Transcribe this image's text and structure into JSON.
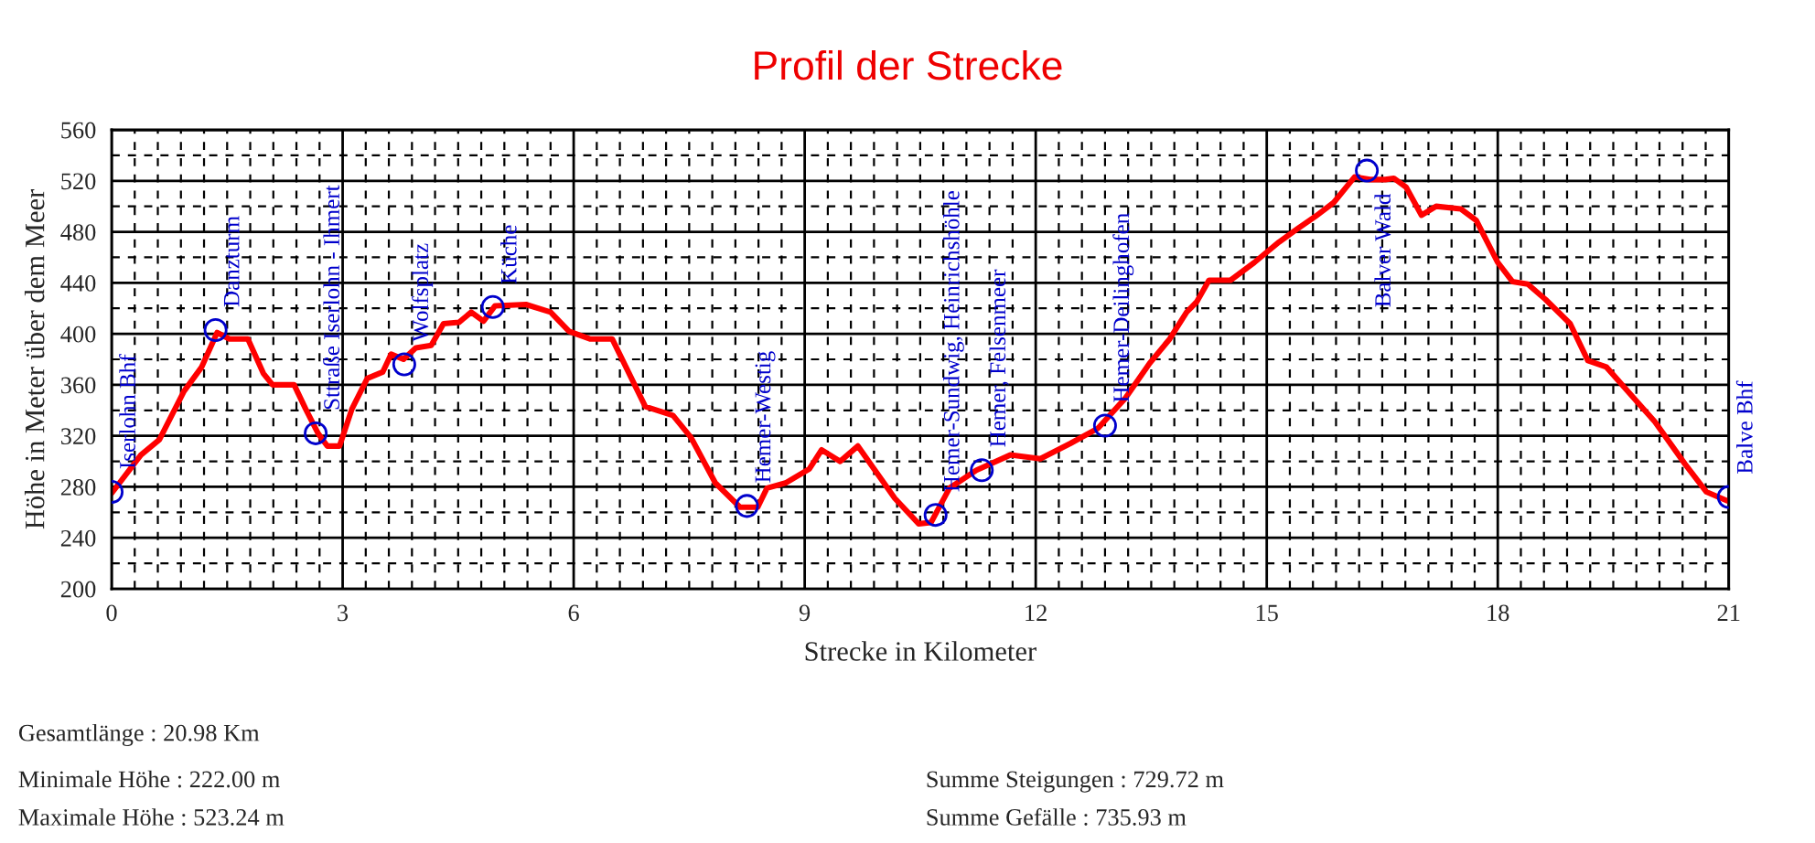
{
  "chart_data": {
    "type": "line",
    "title": "Profil der Strecke",
    "xlabel": "Strecke in Kilometer",
    "ylabel": "Höhe in Meter über dem Meer",
    "xlim": [
      0,
      21
    ],
    "xticks": [
      0,
      3,
      6,
      9,
      12,
      15,
      18,
      21
    ],
    "ylim": [
      200,
      560
    ],
    "yticks": [
      200,
      240,
      280,
      320,
      360,
      400,
      440,
      480,
      520,
      560
    ],
    "grid": true,
    "series": [
      {
        "color": "#ff0000",
        "marker": "none",
        "line_style": "solid",
        "x": [
          0,
          0.38,
          0.62,
          0.94,
          1.17,
          1.37,
          1.53,
          1.77,
          1.97,
          2.09,
          2.37,
          2.52,
          2.68,
          2.8,
          2.96,
          3.12,
          3.32,
          3.52,
          3.63,
          3.79,
          3.95,
          4.15,
          4.31,
          4.51,
          4.67,
          4.83,
          4.98,
          5.38,
          5.7,
          5.94,
          6.21,
          6.5,
          6.93,
          7.29,
          7.52,
          7.84,
          8.16,
          8.39,
          8.51,
          8.75,
          9.06,
          9.22,
          9.46,
          9.69,
          10.17,
          10.48,
          10.64,
          10.88,
          11.23,
          11.67,
          12.06,
          12.45,
          12.81,
          13.17,
          13.48,
          13.74,
          13.96,
          14.09,
          14.25,
          14.53,
          14.84,
          15.16,
          15.39,
          15.63,
          15.87,
          16.14,
          16.34,
          16.54,
          16.65,
          16.81,
          17.01,
          17.2,
          17.52,
          17.72,
          18.0,
          18.19,
          18.39,
          18.62,
          18.94,
          19.17,
          19.41,
          19.76,
          20.04,
          20.43,
          20.71,
          20.98
        ],
        "values": [
          275,
          305,
          317,
          355,
          374,
          401,
          396,
          396,
          369,
          360,
          360,
          341,
          322,
          312,
          312,
          341,
          365,
          370,
          384,
          380,
          389,
          391,
          408,
          409,
          417,
          410,
          422,
          423,
          417,
          402,
          396,
          396,
          343,
          336,
          319,
          283,
          264,
          264,
          279,
          283,
          294,
          309,
          300,
          312,
          271,
          251,
          252,
          279,
          293,
          305,
          302,
          314,
          326,
          350,
          377,
          396,
          417,
          425,
          442,
          442,
          456,
          472,
          482,
          492,
          503,
          523,
          521,
          521,
          522,
          515,
          493,
          500,
          498,
          489,
          456,
          441,
          439,
          427,
          408,
          379,
          374,
          350,
          331,
          298,
          276,
          269
        ]
      },
      {
        "type": "scatter",
        "color": "#0000cc",
        "marker": "circle",
        "x": [
          0,
          1.35,
          2.65,
          3.8,
          4.95,
          8.25,
          10.7,
          11.3,
          12.9,
          16.3,
          21.0
        ],
        "values": [
          276,
          403,
          322,
          376,
          421,
          265,
          258,
          293,
          328,
          528,
          272
        ]
      }
    ],
    "annotations": [
      {
        "text": "Iserlohn Bhf",
        "x": 0,
        "y": 276
      },
      {
        "text": "Danzturm",
        "x": 1.35,
        "y": 403
      },
      {
        "text": "Sttraße Iserlohn - Ihmert",
        "x": 2.65,
        "y": 322
      },
      {
        "text": "Wolfsplatz",
        "x": 3.8,
        "y": 376
      },
      {
        "text": "Küche",
        "x": 4.95,
        "y": 421
      },
      {
        "text": "Hemer-Westig",
        "x": 8.25,
        "y": 265
      },
      {
        "text": "Hemer-Sundwig, Heinrichshöhle",
        "x": 10.7,
        "y": 258
      },
      {
        "text": "Hemer, Felsenmeer",
        "x": 11.3,
        "y": 293
      },
      {
        "text": "Hemer-Deilinghofen",
        "x": 12.9,
        "y": 328
      },
      {
        "text": "Balver Wald",
        "x": 16.3,
        "y": 528
      },
      {
        "text": "Balve Bhf",
        "x": 21.0,
        "y": 272
      },
      "Gesamtlänge : 20.98 Km",
      "Minimale Höhe : 222.00 m",
      "Maximale Höhe : 523.24 m",
      "Summe Steigungen : 729.72 m",
      "Summe Gefälle : 735.93 m"
    ]
  }
}
